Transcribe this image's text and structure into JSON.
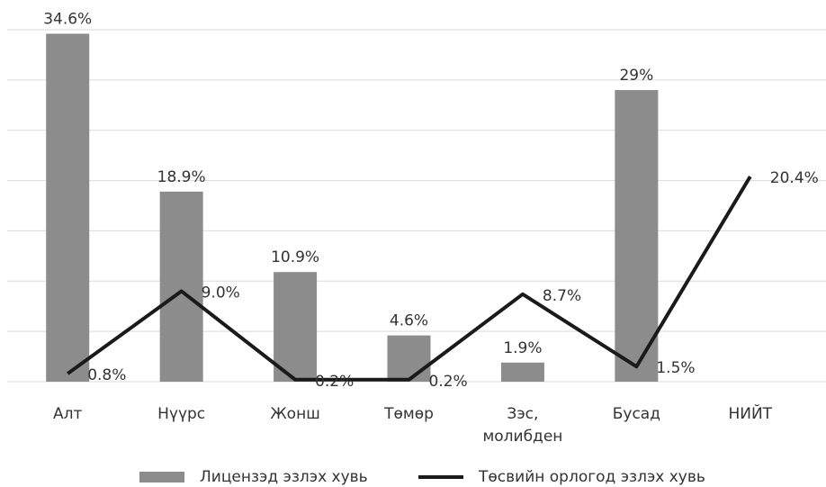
{
  "chart_data": {
    "type": "bar-line",
    "categories": [
      "Алт",
      "Нүүрс",
      "Жонш",
      "Төмөр",
      "Зэс, молибден",
      "Бусад",
      "НИЙТ"
    ],
    "series": [
      {
        "name": "Лицензэд эзлэх хувь",
        "type": "bar",
        "color": "#8c8c8c",
        "values": [
          34.6,
          18.9,
          10.9,
          4.6,
          1.9,
          29,
          null
        ],
        "value_labels": [
          "34.6%",
          "18.9%",
          "10.9%",
          "4.6%",
          "1.9%",
          "29%",
          null
        ]
      },
      {
        "name": "Төсвийн орлогод эзлэх хувь",
        "type": "line",
        "color": "#1a1a1a",
        "values": [
          0.8,
          9.0,
          0.2,
          0.2,
          8.7,
          1.5,
          20.4
        ],
        "value_labels": [
          "0.8%",
          "9.0%",
          "0.2%",
          "0.2%",
          "8.7%",
          "1.5%",
          "20.4%"
        ]
      }
    ],
    "ylim": [
      0,
      35
    ],
    "yticks": [
      0,
      5,
      10,
      15,
      20,
      25,
      30,
      35
    ],
    "grid": true,
    "legend": "bottom"
  }
}
